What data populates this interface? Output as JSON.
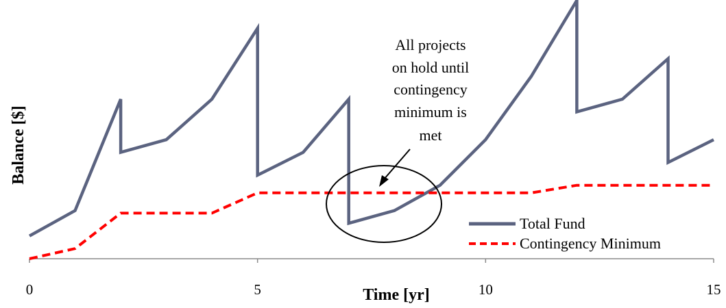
{
  "chart_data": {
    "type": "line",
    "xlabel": "Time [yr]",
    "ylabel": "Balance [$]",
    "xlim": [
      0,
      15
    ],
    "ylim": [
      0,
      10
    ],
    "x_ticks": [
      0,
      5,
      10,
      15
    ],
    "y_ticks_shown": false,
    "grid": false,
    "legend_position": "bottom-right",
    "series": [
      {
        "name": "Total Fund",
        "color": "#5b6380",
        "style": "solid",
        "points": [
          [
            0,
            0.9
          ],
          [
            1,
            1.9
          ],
          [
            2,
            6.3
          ],
          [
            2,
            4.2
          ],
          [
            3,
            4.7
          ],
          [
            4,
            6.3
          ],
          [
            5,
            9.1
          ],
          [
            5,
            3.3
          ],
          [
            6,
            4.2
          ],
          [
            7,
            6.3
          ],
          [
            7,
            1.4
          ],
          [
            8,
            1.9
          ],
          [
            9,
            2.9
          ],
          [
            10,
            4.7
          ],
          [
            11,
            7.2
          ],
          [
            12,
            10.2
          ],
          [
            12,
            5.8
          ],
          [
            13,
            6.3
          ],
          [
            14,
            7.9
          ],
          [
            14,
            3.8
          ],
          [
            15,
            4.7
          ]
        ]
      },
      {
        "name": "Contingency Minimum",
        "color": "#ff0000",
        "style": "dashed",
        "points": [
          [
            0,
            0
          ],
          [
            1,
            0.4
          ],
          [
            2,
            1.8
          ],
          [
            3,
            1.8
          ],
          [
            4,
            1.8
          ],
          [
            5,
            2.6
          ],
          [
            6,
            2.6
          ],
          [
            7,
            2.6
          ],
          [
            8,
            2.6
          ],
          [
            9,
            2.6
          ],
          [
            10,
            2.6
          ],
          [
            11,
            2.6
          ],
          [
            12,
            2.9
          ],
          [
            13,
            2.9
          ],
          [
            14,
            2.9
          ],
          [
            15,
            2.9
          ]
        ]
      }
    ],
    "annotations": [
      {
        "text_lines": [
          "All projects",
          "on hold  until",
          "contingency",
          "minimum is",
          "met"
        ],
        "shape": "ellipse-with-arrow",
        "target_x_range": [
          6.5,
          8.8
        ]
      }
    ]
  }
}
